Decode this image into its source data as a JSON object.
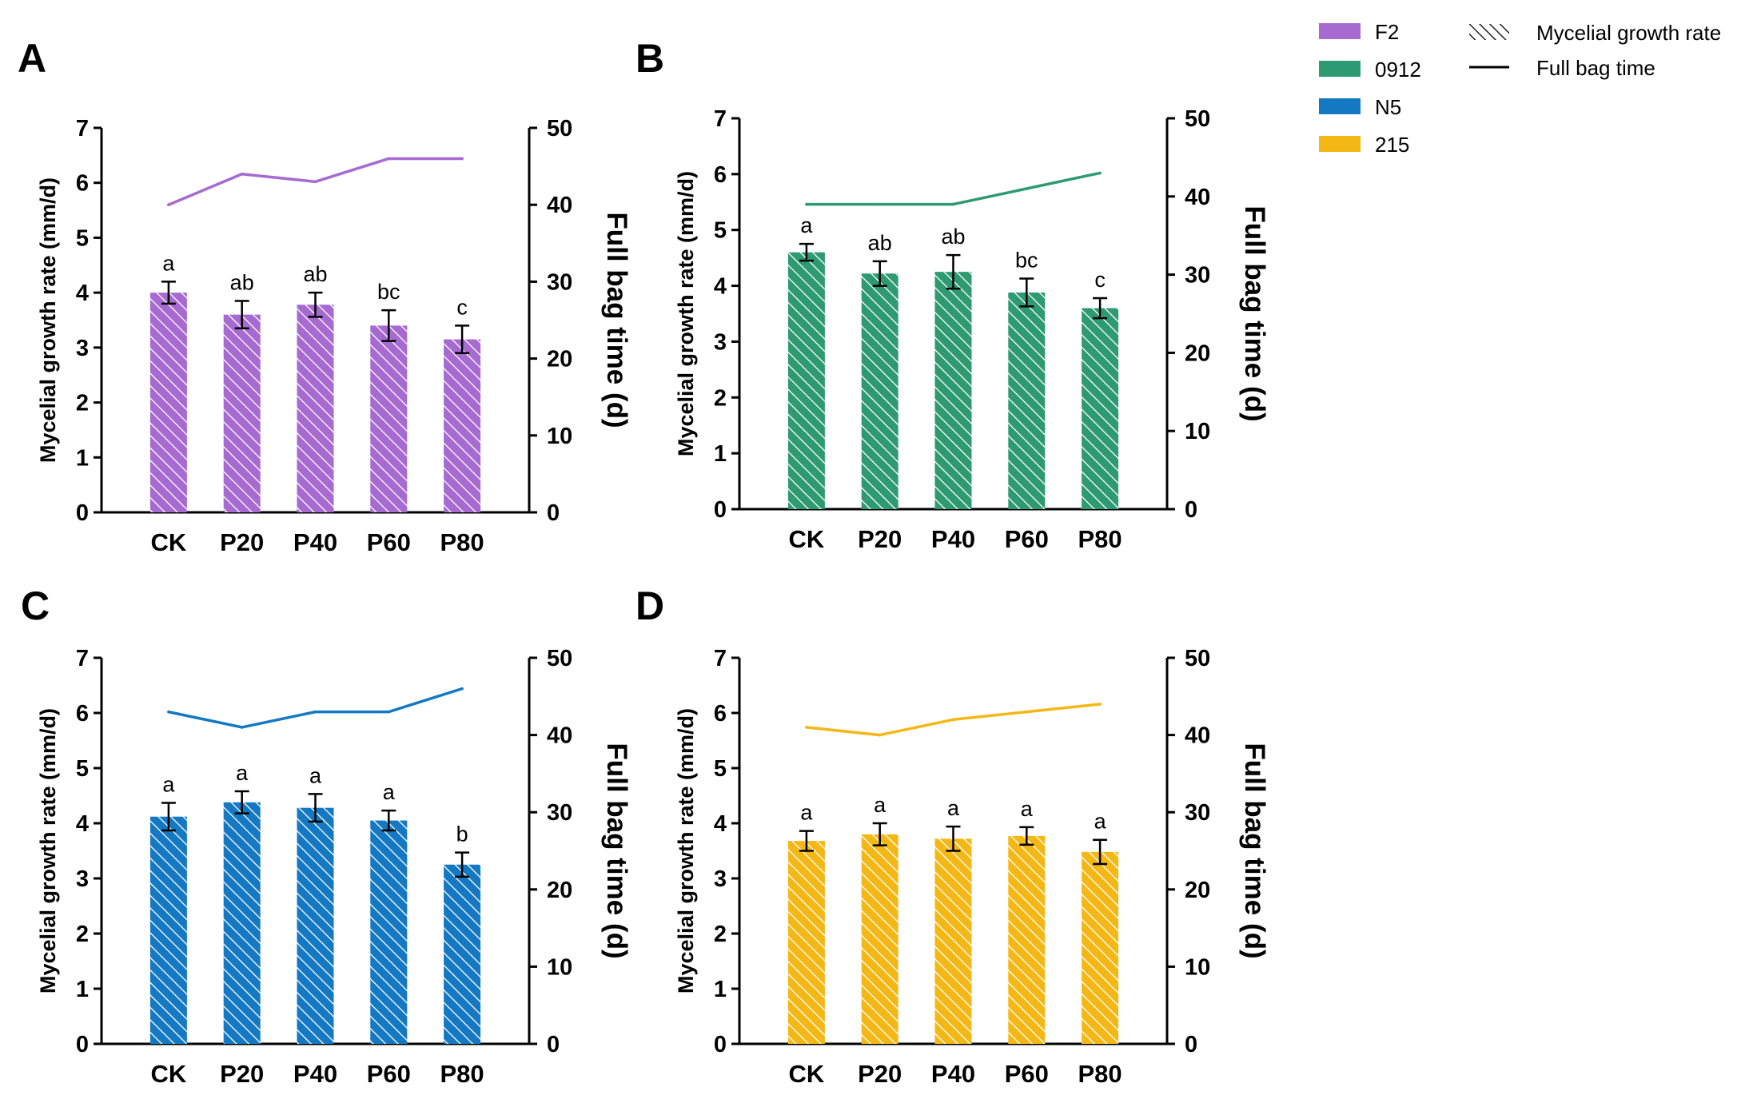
{
  "legend": {
    "strains": [
      {
        "name": "F2",
        "color": "#a66ad0"
      },
      {
        "name": "0912",
        "color": "#2e9a72"
      },
      {
        "name": "N5",
        "color": "#1479c2"
      },
      {
        "name": "215",
        "color": "#f4b816"
      }
    ],
    "bar_entry": "Mycelial growth rate",
    "line_entry": "Full bag time"
  },
  "chart_data": [
    {
      "type": "bar",
      "panel": "A",
      "strain": "F2",
      "color": "#a66ad0",
      "categories": [
        "CK",
        "P20",
        "P40",
        "P60",
        "P80"
      ],
      "bar_series": {
        "name": "Mycelial growth rate",
        "values": [
          4.0,
          3.6,
          3.78,
          3.4,
          3.15
        ],
        "errors": [
          0.2,
          0.25,
          0.22,
          0.28,
          0.25
        ],
        "significance": [
          "a",
          "ab",
          "ab",
          "bc",
          "c"
        ]
      },
      "line_series": {
        "name": "Full bag time",
        "values": [
          40,
          44,
          43,
          46,
          46
        ]
      },
      "ylabel_left": "Mycelial growth rate (mm/d)",
      "ylabel_right": "Full bag time (d)",
      "ylim_left": [
        0,
        7
      ],
      "yticks_left": [
        "0",
        "1",
        "2",
        "3",
        "4",
        "5",
        "6",
        "7"
      ],
      "ylim_right": [
        0,
        50
      ],
      "yticks_right": [
        "0",
        "10",
        "20",
        "30",
        "40",
        "50"
      ]
    },
    {
      "type": "bar",
      "panel": "B",
      "strain": "0912",
      "color": "#2e9a72",
      "categories": [
        "CK",
        "P20",
        "P40",
        "P60",
        "P80"
      ],
      "bar_series": {
        "name": "Mycelial growth rate",
        "values": [
          4.6,
          4.22,
          4.25,
          3.88,
          3.6
        ],
        "errors": [
          0.15,
          0.22,
          0.3,
          0.25,
          0.18
        ],
        "significance": [
          "a",
          "ab",
          "ab",
          "bc",
          "c"
        ]
      },
      "line_series": {
        "name": "Full bag time",
        "values": [
          39,
          39,
          39,
          41,
          43
        ]
      },
      "ylabel_left": "Mycelial growth rate (mm/d)",
      "ylabel_right": "Full bag time (d)",
      "ylim_left": [
        0,
        7
      ],
      "yticks_left": [
        "0",
        "1",
        "2",
        "3",
        "4",
        "5",
        "6",
        "7"
      ],
      "ylim_right": [
        0,
        50
      ],
      "yticks_right": [
        "0",
        "10",
        "20",
        "30",
        "40",
        "50"
      ]
    },
    {
      "type": "bar",
      "panel": "C",
      "strain": "N5",
      "color": "#1479c2",
      "categories": [
        "CK",
        "P20",
        "P40",
        "P60",
        "P80"
      ],
      "bar_series": {
        "name": "Mycelial growth rate",
        "values": [
          4.12,
          4.38,
          4.28,
          4.05,
          3.25
        ],
        "errors": [
          0.25,
          0.2,
          0.25,
          0.18,
          0.22
        ],
        "significance": [
          "a",
          "a",
          "a",
          "a",
          "b"
        ]
      },
      "line_series": {
        "name": "Full bag time",
        "values": [
          43,
          41,
          43,
          43,
          46
        ]
      },
      "ylabel_left": "Mycelial growth rate (mm/d)",
      "ylabel_right": "Full bag time (d)",
      "ylim_left": [
        0,
        7
      ],
      "yticks_left": [
        "0",
        "1",
        "2",
        "3",
        "4",
        "5",
        "6",
        "7"
      ],
      "ylim_right": [
        0,
        50
      ],
      "yticks_right": [
        "0",
        "10",
        "20",
        "30",
        "40",
        "50"
      ]
    },
    {
      "type": "bar",
      "panel": "D",
      "strain": "215",
      "color": "#f4b816",
      "categories": [
        "CK",
        "P20",
        "P40",
        "P60",
        "P80"
      ],
      "bar_series": {
        "name": "Mycelial growth rate",
        "values": [
          3.68,
          3.8,
          3.72,
          3.77,
          3.48
        ],
        "errors": [
          0.18,
          0.2,
          0.22,
          0.16,
          0.22
        ],
        "significance": [
          "a",
          "a",
          "a",
          "a",
          "a"
        ]
      },
      "line_series": {
        "name": "Full bag time",
        "values": [
          41,
          40,
          42,
          43,
          44
        ]
      },
      "ylabel_left": "Mycelial growth rate (mm/d)",
      "ylabel_right": "Full bag time (d)",
      "ylim_left": [
        0,
        7
      ],
      "yticks_left": [
        "0",
        "1",
        "2",
        "3",
        "4",
        "5",
        "6",
        "7"
      ],
      "ylim_right": [
        0,
        50
      ],
      "yticks_right": [
        "0",
        "10",
        "20",
        "30",
        "40",
        "50"
      ]
    }
  ]
}
